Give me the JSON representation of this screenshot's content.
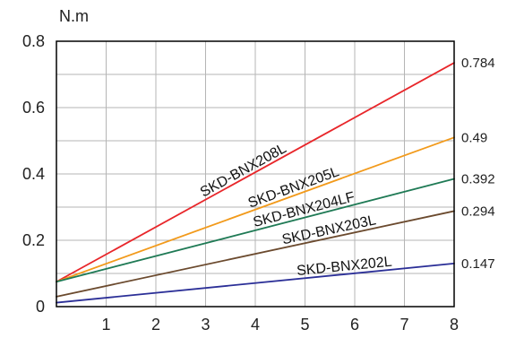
{
  "chart_data": {
    "type": "line",
    "ylabel": "N.m",
    "xlim": [
      0,
      8
    ],
    "ylim": [
      0,
      0.8
    ],
    "x_ticks": [
      1,
      2,
      3,
      4,
      5,
      6,
      7,
      8
    ],
    "y_ticks": [
      {
        "value": 0,
        "label": "0"
      },
      {
        "value": 0.2,
        "label": "0.2"
      },
      {
        "value": 0.4,
        "label": "0.4"
      },
      {
        "value": 0.6,
        "label": "0.6"
      },
      {
        "value": 0.8,
        "label": "0.8"
      }
    ],
    "grid": true,
    "series": [
      {
        "name": "SKD-BNX208L",
        "color": "#e8262a",
        "points": [
          [
            0,
            0.075
          ],
          [
            8,
            0.735
          ]
        ],
        "end_label": "0.784",
        "label_x": 3.8
      },
      {
        "name": "SKD-BNX205L",
        "color": "#f29a1b",
        "points": [
          [
            0,
            0.075
          ],
          [
            8,
            0.51
          ]
        ],
        "end_label": "0.49",
        "label_x": 4.8
      },
      {
        "name": "SKD-BNX204LF",
        "color": "#1f7a55",
        "points": [
          [
            0,
            0.075
          ],
          [
            8,
            0.385
          ]
        ],
        "end_label": "0.392",
        "label_x": 5.0
      },
      {
        "name": "SKD-BNX203L",
        "color": "#6b4a2e",
        "points": [
          [
            0,
            0.03
          ],
          [
            8,
            0.288
          ]
        ],
        "end_label": "0.294",
        "label_x": 5.5
      },
      {
        "name": "SKD-BNX202L",
        "color": "#2b2f97",
        "points": [
          [
            0,
            0.012
          ],
          [
            8,
            0.13
          ]
        ],
        "end_label": "0.147",
        "label_x": 5.8
      }
    ]
  }
}
